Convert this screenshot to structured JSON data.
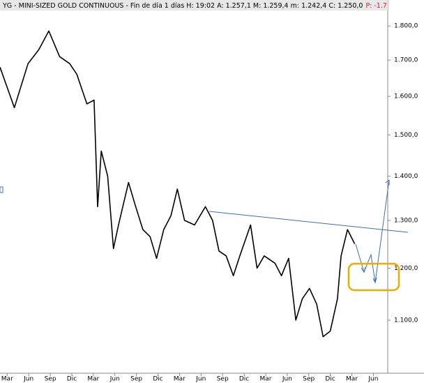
{
  "chart_data": {
    "type": "line",
    "title": "YG - MINI-SIZED GOLD CONTINUOUS - Fin de día 1 días H: 19:02 A: 1.257,1 M: 1.259,4 m: 1.242,4 C: 1.250,0",
    "change_label": "P: -1.7",
    "log_scale": true,
    "color": "#000000",
    "x": [
      -1.0,
      1.0,
      2.9,
      4.4,
      5.8,
      7.3,
      8.7,
      9.7,
      11.1,
      12.1,
      12.6,
      13.1,
      14.0,
      14.8,
      15.5,
      16.9,
      17.9,
      18.9,
      19.9,
      20.8,
      21.8,
      22.8,
      23.7,
      24.7,
      26.1,
      27.6,
      28.6,
      29.5,
      30.5,
      31.5,
      32.4,
      33.9,
      34.8,
      35.8,
      37.3,
      38.2,
      39.2,
      40.2,
      41.1,
      42.1,
      43.1,
      44.0,
      45.0,
      46.0,
      46.5,
      47.4,
      48.4
    ],
    "values": [
      1680,
      1570,
      1690,
      1730,
      1785,
      1710,
      1690,
      1660,
      1580,
      1590,
      1330,
      1460,
      1400,
      1240,
      1290,
      1385,
      1330,
      1280,
      1265,
      1220,
      1280,
      1310,
      1370,
      1300,
      1290,
      1330,
      1300,
      1235,
      1225,
      1185,
      1225,
      1290,
      1200,
      1225,
      1210,
      1185,
      1220,
      1100,
      1140,
      1160,
      1130,
      1070,
      1080,
      1140,
      1225,
      1280,
      1250
    ],
    "xlim": [
      -1,
      53
    ],
    "ylim": [
      1010,
      1880
    ],
    "xticks": [
      {
        "value": 0,
        "label": "Mar"
      },
      {
        "value": 3,
        "label": "Jun"
      },
      {
        "value": 6,
        "label": "Sep"
      },
      {
        "value": 9,
        "label": "Dic"
      },
      {
        "value": 12,
        "label": "Mar"
      },
      {
        "value": 15,
        "label": "Jun"
      },
      {
        "value": 18,
        "label": "Sep"
      },
      {
        "value": 21,
        "label": "Dic"
      },
      {
        "value": 24,
        "label": "Mar"
      },
      {
        "value": 27,
        "label": "Jun"
      },
      {
        "value": 30,
        "label": "Sep"
      },
      {
        "value": 33,
        "label": "Dic"
      },
      {
        "value": 36,
        "label": "Mar"
      },
      {
        "value": 39,
        "label": "Jun"
      },
      {
        "value": 42,
        "label": "Sep"
      },
      {
        "value": 45,
        "label": "Dic"
      },
      {
        "value": 48,
        "label": "Mar"
      },
      {
        "value": 51,
        "label": "Jun"
      }
    ],
    "yticks": [
      {
        "value": 1100,
        "label": "1.100,0"
      },
      {
        "value": 1200,
        "label": "1.200,0"
      },
      {
        "value": 1300,
        "label": "1.300,0"
      },
      {
        "value": 1400,
        "label": "1.400,0"
      },
      {
        "value": 1500,
        "label": "1.500,0"
      },
      {
        "value": 1600,
        "label": "1.600,0"
      },
      {
        "value": 1700,
        "label": "1.700,0"
      },
      {
        "value": 1800,
        "label": "1.800,0"
      }
    ]
  }
}
